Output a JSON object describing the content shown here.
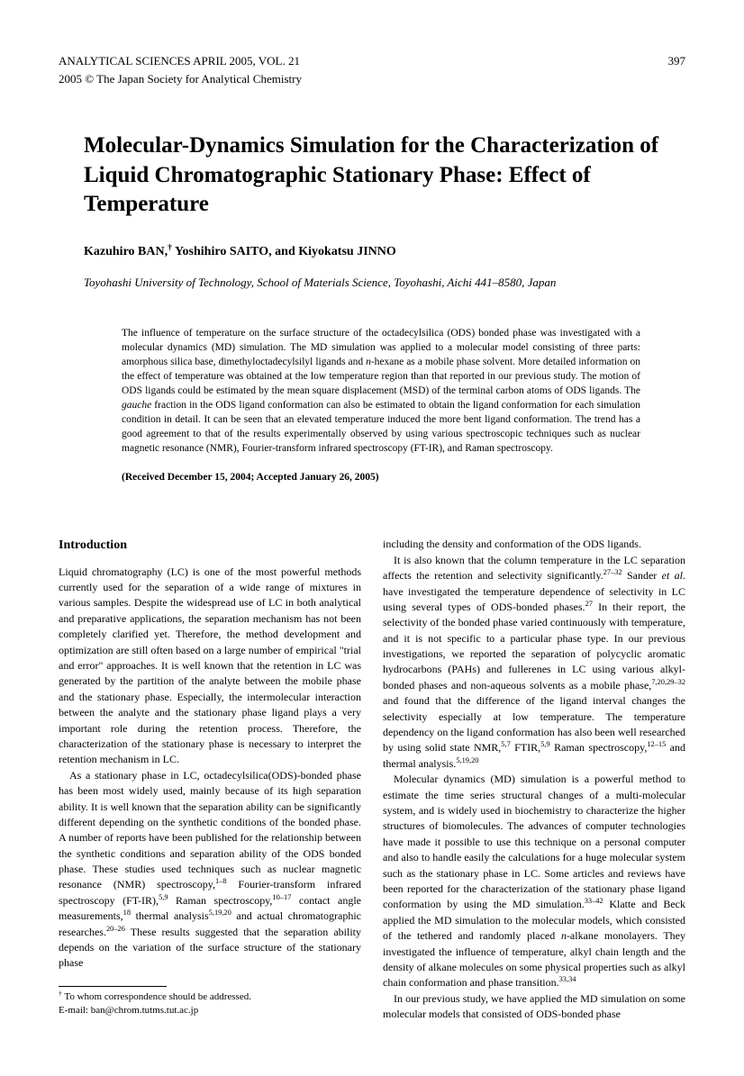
{
  "header": {
    "journal": "ANALYTICAL SCIENCES   APRIL 2005, VOL. 21",
    "page_number": "397",
    "copyright": "2005 © The Japan Society for Analytical Chemistry"
  },
  "title": "Molecular-Dynamics Simulation for the Characterization of Liquid Chromatographic Stationary Phase: Effect of Temperature",
  "authors_html": "Kazuhiro B<span class='smallcaps'>AN</span>,<sup>†</sup> Yoshihiro S<span class='smallcaps'>AITO</span>, and Kiyokatsu J<span class='smallcaps'>INNO</span>",
  "affiliation": "Toyohashi University of Technology, School of Materials Science, Toyohashi, Aichi 441–8580, Japan",
  "abstract_html": "The influence of temperature on the surface structure of the octadecylsilica (ODS) bonded phase was investigated with a molecular dynamics (MD) simulation.  The MD simulation was applied to a molecular model consisting of three parts: amorphous silica base, dimethyloctadecylsilyl ligands and <span class='ital'>n</span>-hexane as a mobile phase solvent.  More detailed information on the effect of temperature was obtained at the low temperature region than that reported in our previous study.  The motion of ODS ligands could be estimated by the mean square displacement (MSD) of the terminal carbon atoms of ODS ligands.  The <span class='ital'>gauche</span> fraction in the ODS ligand conformation can also be estimated to obtain the ligand conformation for each simulation condition in detail.  It can be seen that an elevated temperature induced the more bent ligand conformation.  The trend has a good agreement to that of the results experimentally observed by using various spectroscopic techniques such as nuclear magnetic resonance (NMR), Fourier-transform infrared spectroscopy (FT-IR), and Raman spectroscopy.",
  "received": "(Received December 15, 2004; Accepted January 26, 2005)",
  "intro_heading": "Introduction",
  "left_col": {
    "p1": "Liquid chromatography (LC) is one of the most powerful methods currently used for the separation of a wide range of mixtures in various samples.  Despite the widespread use of LC in both analytical and preparative applications, the separation mechanism has not been completely clarified yet.  Therefore, the method development and optimization are still often based on a large number of empirical \"trial and error\" approaches.  It is well known that the retention in LC was generated by the partition of the analyte between the mobile phase and the stationary phase.  Especially, the intermolecular interaction between the analyte and the stationary phase ligand plays a very important role during the retention process.  Therefore, the characterization of the stationary phase is necessary to interpret the retention mechanism in LC.",
    "p2_html": "As a stationary phase in LC, octadecylsilica(ODS)-bonded phase has been most widely used, mainly because of its high separation ability.  It is well known that the separation ability can be significantly different depending on the synthetic conditions of the bonded phase.  A number of reports have been published for the relationship between the synthetic conditions and separation ability of the ODS bonded phase.  These studies used techniques such as nuclear magnetic resonance (NMR) spectroscopy,<sup>1–8</sup> Fourier-transform infrared spectroscopy (FT-IR),<sup>5,9</sup> Raman spectroscopy,<sup>10–17</sup> contact angle measurements,<sup>18</sup> thermal analysis<sup>5,19,20</sup> and actual chromatographic researches.<sup>20–26</sup> These results suggested that the separation ability depends on the variation of the surface structure of the stationary phase"
  },
  "right_col": {
    "p1": "including the density and conformation of the ODS ligands.",
    "p2_html": "It is also known that the column temperature in the LC separation affects the retention and selectivity significantly.<sup>27–32</sup> Sander <span class='ital'>et al</span>. have investigated the temperature dependence of selectivity in LC using several types of ODS-bonded phases.<sup>27</sup> In their report, the selectivity of the bonded phase varied continuously with temperature, and it is not specific to a particular phase type.  In our previous investigations, we reported the separation of polycyclic aromatic hydrocarbons (PAHs) and fullerenes in LC using various alkyl-bonded phases and non-aqueous solvents as a mobile phase,<sup>7,20,29–32</sup> and found that the difference of the ligand interval changes the selectivity especially at low temperature.  The temperature dependency on the ligand conformation has also been well researched by using solid state NMR,<sup>5,7</sup> FTIR,<sup>5,9</sup> Raman spectroscopy,<sup>12–15</sup> and thermal analysis.<sup>5,19,20</sup>",
    "p3_html": "Molecular dynamics (MD) simulation is a powerful method to estimate the time series structural changes of a multi-molecular system, and is widely used in biochemistry to characterize the higher structures of biomolecules.  The advances of computer technologies have made it possible to use this technique on a personal computer and also to handle easily the calculations for a huge molecular system such as the stationary phase in LC.  Some articles and reviews have been reported for the characterization of the stationary phase ligand conformation by using the MD simulation.<sup>33–42</sup>  Klatte and Beck applied the MD simulation to the molecular models, which consisted of the tethered and randomly placed <span class='ital'>n</span>-alkane monolayers.  They investigated the influence of temperature, alkyl chain length and the density of alkane molecules on some physical properties such as alkyl chain conformation and phase transition.<sup>33,34</sup>",
    "p4": "In our previous study, we have applied the MD simulation on some molecular models that consisted of ODS-bonded phase"
  },
  "footnote": {
    "line1_html": "<sup>†</sup> To whom correspondence should be addressed.",
    "line2": "E-mail: ban@chrom.tutms.tut.ac.jp"
  }
}
